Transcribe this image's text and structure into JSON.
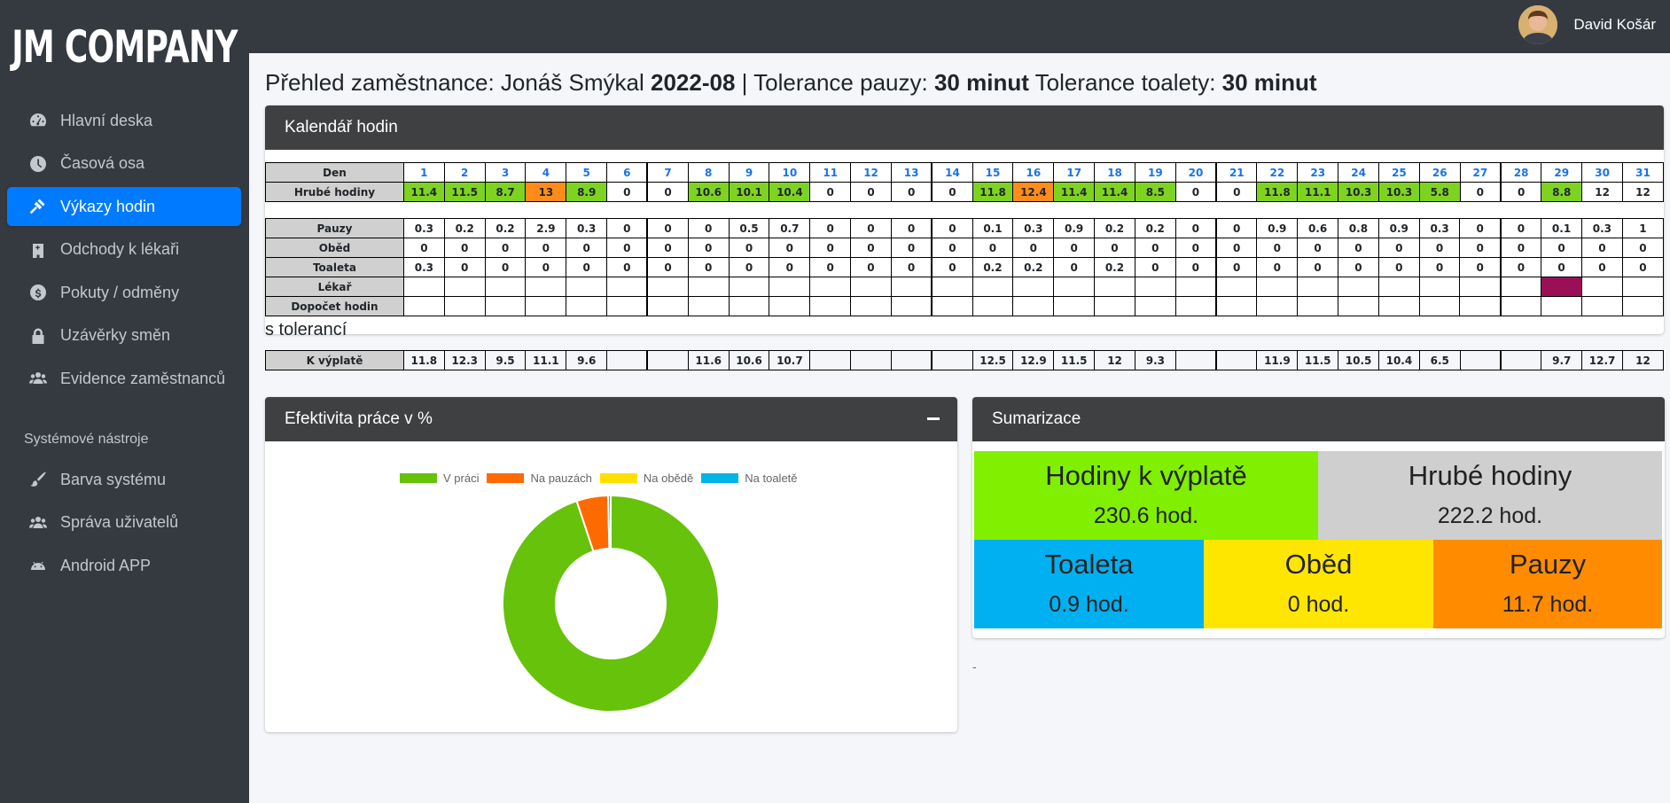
{
  "brand": "JM COMPANY",
  "user": {
    "name": "David Košár"
  },
  "sidebar": {
    "items": [
      {
        "label": "Hlavní deska",
        "icon": "tachometer-icon"
      },
      {
        "label": "Časová osa",
        "icon": "clock-icon"
      },
      {
        "label": "Výkazy hodin",
        "icon": "gavel-icon",
        "active": true
      },
      {
        "label": "Odchody k lékaři",
        "icon": "hospital-icon"
      },
      {
        "label": "Pokuty / odměny",
        "icon": "dollar-circle-icon"
      },
      {
        "label": "Uzávěrky směn",
        "icon": "lock-icon"
      },
      {
        "label": "Evidence zaměstnanců",
        "icon": "users-icon"
      }
    ],
    "section_header": "Systémové nástroje",
    "tools": [
      {
        "label": "Barva systému",
        "icon": "paint-brush-icon"
      },
      {
        "label": "Správa uživatelů",
        "icon": "users-icon"
      },
      {
        "label": "Android APP",
        "icon": "android-icon"
      }
    ]
  },
  "page_title": {
    "prefix": "Přehled zaměstnance: Jonáš Smýkal ",
    "month": "2022-08",
    "sep": " | Tolerance pauzy: ",
    "pause_tol": "30 minut",
    "mid": " Tolerance toalety: ",
    "toilet_tol": "30 minut"
  },
  "calendar": {
    "title": "Kalendář hodin",
    "labels": {
      "day": "Den",
      "gross": "Hrubé hodiny",
      "pauses": "Pauzy",
      "lunch": "Oběd",
      "toilet": "Toaleta",
      "doctor": "Lékař",
      "extra": "Dopočet hodin",
      "pay": "K výplatě"
    },
    "days": [
      "1",
      "2",
      "3",
      "4",
      "5",
      "6",
      "7",
      "8",
      "9",
      "10",
      "11",
      "12",
      "13",
      "14",
      "15",
      "16",
      "17",
      "18",
      "19",
      "20",
      "21",
      "22",
      "23",
      "24",
      "25",
      "26",
      "27",
      "28",
      "29",
      "30",
      "31"
    ],
    "gross": [
      "11.4",
      "11.5",
      "8.7",
      "13",
      "8.9",
      "0",
      "0",
      "10.6",
      "10.1",
      "10.4",
      "0",
      "0",
      "0",
      "0",
      "11.8",
      "12.4",
      "11.4",
      "11.4",
      "8.5",
      "0",
      "0",
      "11.8",
      "11.1",
      "10.3",
      "10.3",
      "5.8",
      "0",
      "0",
      "8.8",
      "12",
      "12"
    ],
    "gross_color": [
      "g",
      "g",
      "g",
      "o",
      "g",
      "",
      "",
      "g",
      "g",
      "g",
      "",
      "",
      "",
      "",
      "g",
      "o",
      "g",
      "g",
      "g",
      "",
      "",
      "g",
      "g",
      "g",
      "g",
      "g",
      "",
      "",
      "g",
      "",
      ""
    ],
    "pauses": [
      "0.3",
      "0.2",
      "0.2",
      "2.9",
      "0.3",
      "0",
      "0",
      "0",
      "0.5",
      "0.7",
      "0",
      "0",
      "0",
      "0",
      "0.1",
      "0.3",
      "0.9",
      "0.2",
      "0.2",
      "0",
      "0",
      "0.9",
      "0.6",
      "0.8",
      "0.9",
      "0.3",
      "0",
      "0",
      "0.1",
      "0.3",
      "1"
    ],
    "lunch": [
      "0",
      "0",
      "0",
      "0",
      "0",
      "0",
      "0",
      "0",
      "0",
      "0",
      "0",
      "0",
      "0",
      "0",
      "0",
      "0",
      "0",
      "0",
      "0",
      "0",
      "0",
      "0",
      "0",
      "0",
      "0",
      "0",
      "0",
      "0",
      "0",
      "0",
      "0"
    ],
    "toilet": [
      "0.3",
      "0",
      "0",
      "0",
      "0",
      "0",
      "0",
      "0",
      "0",
      "0",
      "0",
      "0",
      "0",
      "0",
      "0.2",
      "0.2",
      "0",
      "0.2",
      "0",
      "0",
      "0",
      "0",
      "0",
      "0",
      "0",
      "0",
      "0",
      "0",
      "0",
      "0",
      "0"
    ],
    "doctor_marked": [
      29
    ],
    "tolerance_text": "s tolerancí",
    "pay": [
      "11.8",
      "12.3",
      "9.5",
      "11.1",
      "9.6",
      "",
      "",
      "11.6",
      "10.6",
      "10.7",
      "",
      "",
      "",
      "",
      "12.5",
      "12.9",
      "11.5",
      "12",
      "9.3",
      "",
      "",
      "11.9",
      "11.5",
      "10.5",
      "10.4",
      "6.5",
      "",
      "",
      "9.7",
      "12.7",
      "12"
    ]
  },
  "efficiency": {
    "title": "Efektivita práce v %",
    "chart_data": {
      "type": "pie",
      "categories": [
        "V práci",
        "Na pauzách",
        "Na obědě",
        "Na toaletě"
      ],
      "values": [
        94.9,
        4.7,
        0,
        0.4
      ],
      "colors": [
        "#66c20a",
        "#ff6a00",
        "#ffe000",
        "#00b4e6"
      ]
    }
  },
  "summary": {
    "title": "Sumarizace",
    "tiles": [
      {
        "title": "Hodiny k výplatě",
        "value": "230.6 hod.",
        "color": "#80ef00"
      },
      {
        "title": "Hrubé hodiny",
        "value": "222.2 hod.",
        "color": "#cfcfcf"
      },
      {
        "title": "Toaleta",
        "value": "0.9 hod.",
        "color": "#00b0f0"
      },
      {
        "title": "Oběd",
        "value": "0 hod.",
        "color": "#ffe600"
      },
      {
        "title": "Pauzy",
        "value": "11.7 hod.",
        "color": "#ff8c00"
      }
    ],
    "footer": "-"
  }
}
